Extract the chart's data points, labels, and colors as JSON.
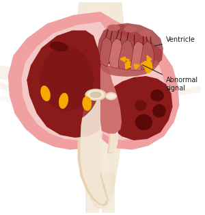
{
  "bg_color": "#ffffff",
  "heart_outer_color": "#f0a0a0",
  "heart_wall_color": "#e88888",
  "heart_inner_bg": "#f5c8c8",
  "chamber_dark": "#8b1a1a",
  "chamber_mid": "#a03030",
  "septum_color": "#cc7070",
  "wall_muscle_color": "#c06060",
  "valve_color": "#b85858",
  "aorta_outer": "#e8d0b0",
  "aorta_inner": "#f5e8d8",
  "vessel_color": "#ddc8a8",
  "spine_color": "#ede0c8",
  "spine_light": "#f5ece0",
  "yellow_color": "#f5aa00",
  "dark_red": "#5a0808",
  "text_color": "#1a1a1a",
  "label_abnormal": "Abnormal\nsignal",
  "label_ventricle": "Ventricle"
}
